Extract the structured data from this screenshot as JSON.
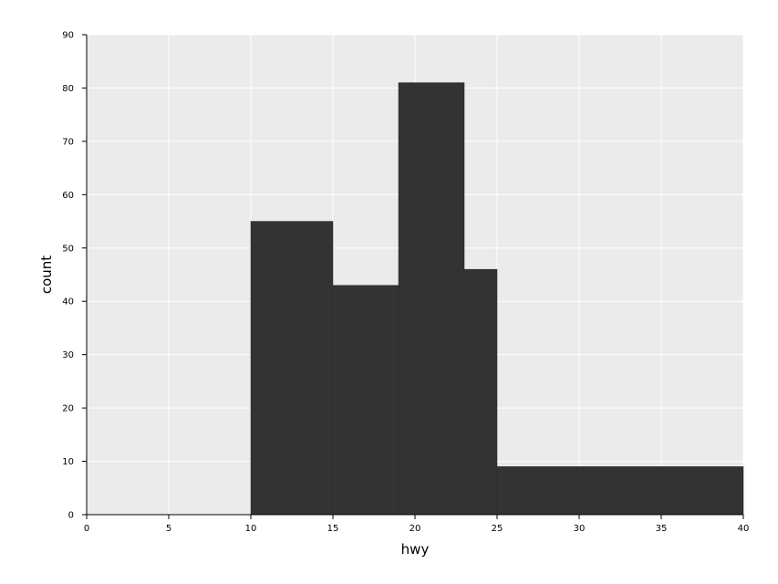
{
  "chart_data": {
    "type": "bar",
    "title": "",
    "xlabel": "hwy",
    "ylabel": "count",
    "xlim": [
      0,
      40
    ],
    "ylim": [
      0,
      90
    ],
    "x_ticks": [
      0,
      5,
      10,
      15,
      20,
      25,
      30,
      35,
      40
    ],
    "y_ticks": [
      0,
      10,
      20,
      30,
      40,
      50,
      60,
      70,
      80,
      90
    ],
    "grid": true,
    "legend": "none",
    "bins": [
      {
        "x_start": 10,
        "x_end": 15,
        "count": 55
      },
      {
        "x_start": 15,
        "x_end": 19,
        "count": 43
      },
      {
        "x_start": 19,
        "x_end": 23,
        "count": 81
      },
      {
        "x_start": 23,
        "x_end": 25,
        "count": 46
      },
      {
        "x_start": 25,
        "x_end": 40,
        "count": 9
      }
    ],
    "colors": {
      "panel_background": "#ebebeb",
      "grid": "#ffffff",
      "bar_fill": "#333333",
      "axis": "#000000"
    }
  }
}
